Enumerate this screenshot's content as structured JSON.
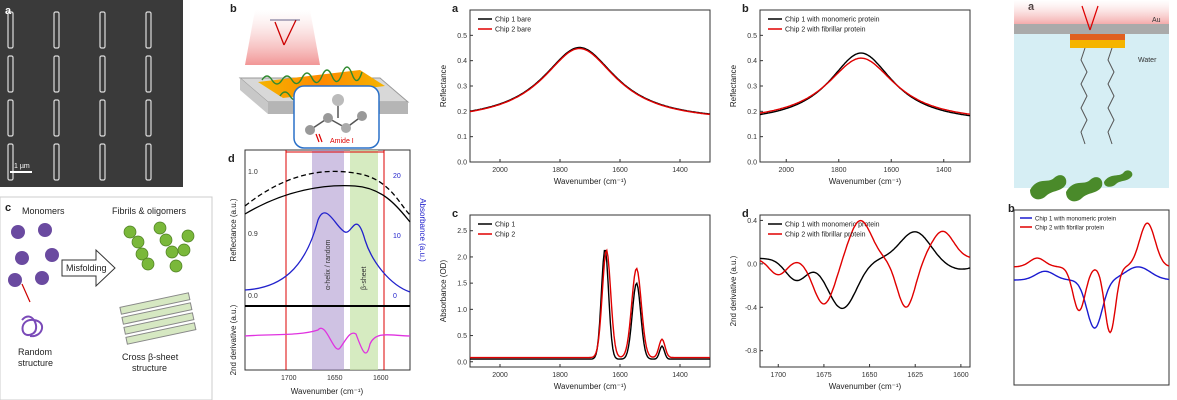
{
  "figure": {
    "left": {
      "a": {
        "panel_label": "a",
        "scale_bar": "1 µm"
      },
      "b": {
        "panel_label": "b",
        "marker": "Amide I"
      },
      "c": {
        "panel_label": "c",
        "monomers": "Monomers",
        "fibrils": "Fibrils & oligomers",
        "arrow_text": "Misfolding",
        "random": "Random\nstructure",
        "crossb": "Cross β-sheet\nstructure"
      },
      "d": {
        "panel_label": "d",
        "ylabel_top": "Reflectance (a.u.)",
        "ylabel_right": "Absorbance (a.u.)",
        "ylabel_bottom": "2nd derivative (a.u.)",
        "xlabel": "Wavenumber (cm⁻¹)",
        "band1": "α-helix / random",
        "band2": "β-sheet"
      }
    },
    "middle": {
      "a": {
        "panel_label": "a",
        "ylabel": "Reflectance",
        "xlabel": "Wavenumber (cm⁻¹)",
        "legend": [
          "Chip 1 bare",
          "Chip 2 bare"
        ]
      },
      "b": {
        "panel_label": "b",
        "ylabel": "Reflectance",
        "xlabel": "Wavenumber (cm⁻¹)",
        "legend": [
          "Chip 1 with monomeric protein",
          "Chip 2 with fibrillar protein"
        ]
      },
      "c": {
        "panel_label": "c",
        "ylabel": "Absorbance (OD)",
        "xlabel": "Wavenumber (cm⁻¹)",
        "legend": [
          "Chip 1",
          "Chip 2"
        ]
      },
      "d": {
        "panel_label": "d",
        "ylabel": "2nd derivative (a.u.)",
        "xlabel": "Wavenumber (cm⁻¹)",
        "legend": [
          "Chip 1 with monomeric protein",
          "Chip 2 with fibrillar protein"
        ]
      }
    },
    "right": {
      "top": {
        "panel_label": "a",
        "layer1": "Au",
        "layer2": "Water"
      },
      "bottom": {
        "panel_label": "b",
        "legend": [
          "Chip 1 with monomeric protein",
          "Chip 2 with fibrillar protein"
        ]
      }
    }
  },
  "chart_data": [
    {
      "type": "line",
      "title": "",
      "xlabel": "Wavenumber (cm⁻¹)",
      "ylabel": "Reflectance",
      "x_ticks": [
        2000,
        1800,
        1600,
        1400
      ],
      "y_ticks": [
        0.0,
        0.1,
        0.2,
        0.3,
        0.4,
        0.5
      ],
      "xlim": [
        2100,
        1300
      ],
      "ylim": [
        0,
        0.6
      ],
      "series": [
        {
          "name": "Chip 1 bare",
          "color": "#000000",
          "peak_x": 1735,
          "peak_y": 0.452
        },
        {
          "name": "Chip 2 bare",
          "color": "#e00000",
          "peak_x": 1735,
          "peak_y": 0.448
        }
      ]
    },
    {
      "type": "line",
      "title": "",
      "xlabel": "Wavenumber (cm⁻¹)",
      "ylabel": "Reflectance",
      "x_ticks": [
        2000,
        1800,
        1600,
        1400
      ],
      "y_ticks": [
        0.0,
        0.1,
        0.2,
        0.3,
        0.4,
        0.5
      ],
      "xlim": [
        2100,
        1300
      ],
      "ylim": [
        0,
        0.6
      ],
      "series": [
        {
          "name": "Chip 1 with monomeric protein",
          "color": "#000000",
          "peak_x": 1715,
          "peak_y": 0.43
        },
        {
          "name": "Chip 2 with fibrillar protein",
          "color": "#e00000",
          "peak_x": 1715,
          "peak_y": 0.41
        }
      ]
    },
    {
      "type": "line",
      "title": "",
      "xlabel": "Wavenumber (cm⁻¹)",
      "ylabel": "Absorbance (OD)",
      "x_ticks": [
        2000,
        1800,
        1600,
        1400
      ],
      "y_ticks": [
        0.0,
        0.5,
        1.0,
        1.5,
        2.0,
        2.5
      ],
      "xlim": [
        2100,
        1300
      ],
      "ylim": [
        -0.1,
        2.8
      ],
      "series": [
        {
          "name": "Chip 1",
          "color": "#000000",
          "peaks": [
            [
              1650,
              2.1
            ],
            [
              1545,
              1.45
            ]
          ]
        },
        {
          "name": "Chip 2",
          "color": "#e00000",
          "peaks": [
            [
              1645,
              2.05
            ],
            [
              1545,
              1.7
            ]
          ]
        }
      ]
    },
    {
      "type": "line",
      "title": "",
      "xlabel": "Wavenumber (cm⁻¹)",
      "ylabel": "2nd derivative (a.u.)",
      "x_ticks": [
        1700,
        1675,
        1650,
        1625,
        1600
      ],
      "y_ticks": [
        0.4,
        0.0,
        -0.4,
        -0.8
      ],
      "xlim": [
        1710,
        1595
      ],
      "ylim": [
        -0.95,
        0.45
      ],
      "series": [
        {
          "name": "Chip 1 with monomeric protein",
          "color": "#000000"
        },
        {
          "name": "Chip 2 with fibrillar protein",
          "color": "#e00000"
        }
      ]
    },
    {
      "type": "line",
      "title": "",
      "xlabel": "",
      "ylabel": "",
      "series": [
        {
          "name": "Chip 1 with monomeric protein",
          "color": "#1a1ad0"
        },
        {
          "name": "Chip 2 with fibrillar protein",
          "color": "#e00000"
        }
      ]
    }
  ]
}
